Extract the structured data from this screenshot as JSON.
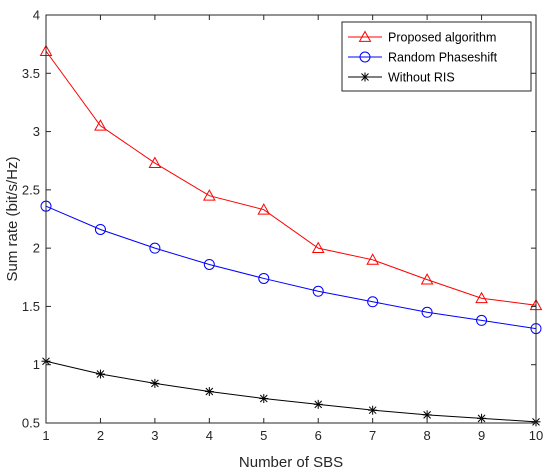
{
  "chart_data": {
    "type": "line",
    "xlabel": "Number of SBS",
    "ylabel": "Sum rate (bit/s/Hz)",
    "xlim": [
      1,
      10
    ],
    "ylim": [
      0.5,
      4
    ],
    "xticks": [
      1,
      2,
      3,
      4,
      5,
      6,
      7,
      8,
      9,
      10
    ],
    "yticks": [
      0.5,
      1,
      1.5,
      2,
      2.5,
      3,
      3.5,
      4
    ],
    "ytick_labels": [
      "0.5",
      "1",
      "1.5",
      "2",
      "2.5",
      "3",
      "3.5",
      "4"
    ],
    "grid": false,
    "legend_position": "top-right",
    "x": [
      1,
      2,
      3,
      4,
      5,
      6,
      7,
      8,
      9,
      10
    ],
    "series": [
      {
        "name": "Proposed algorithm",
        "color": "#ff0000",
        "marker": "triangle",
        "values": [
          3.69,
          3.05,
          2.73,
          2.45,
          2.33,
          2.0,
          1.9,
          1.73,
          1.57,
          1.51
        ]
      },
      {
        "name": "Random Phaseshift",
        "color": "#0000ff",
        "marker": "circle",
        "values": [
          2.36,
          2.16,
          2.0,
          1.86,
          1.74,
          1.63,
          1.54,
          1.45,
          1.38,
          1.31
        ]
      },
      {
        "name": "Without RIS",
        "color": "#000000",
        "marker": "asterisk",
        "values": [
          1.03,
          0.92,
          0.84,
          0.77,
          0.71,
          0.66,
          0.61,
          0.57,
          0.54,
          0.51
        ]
      }
    ]
  }
}
